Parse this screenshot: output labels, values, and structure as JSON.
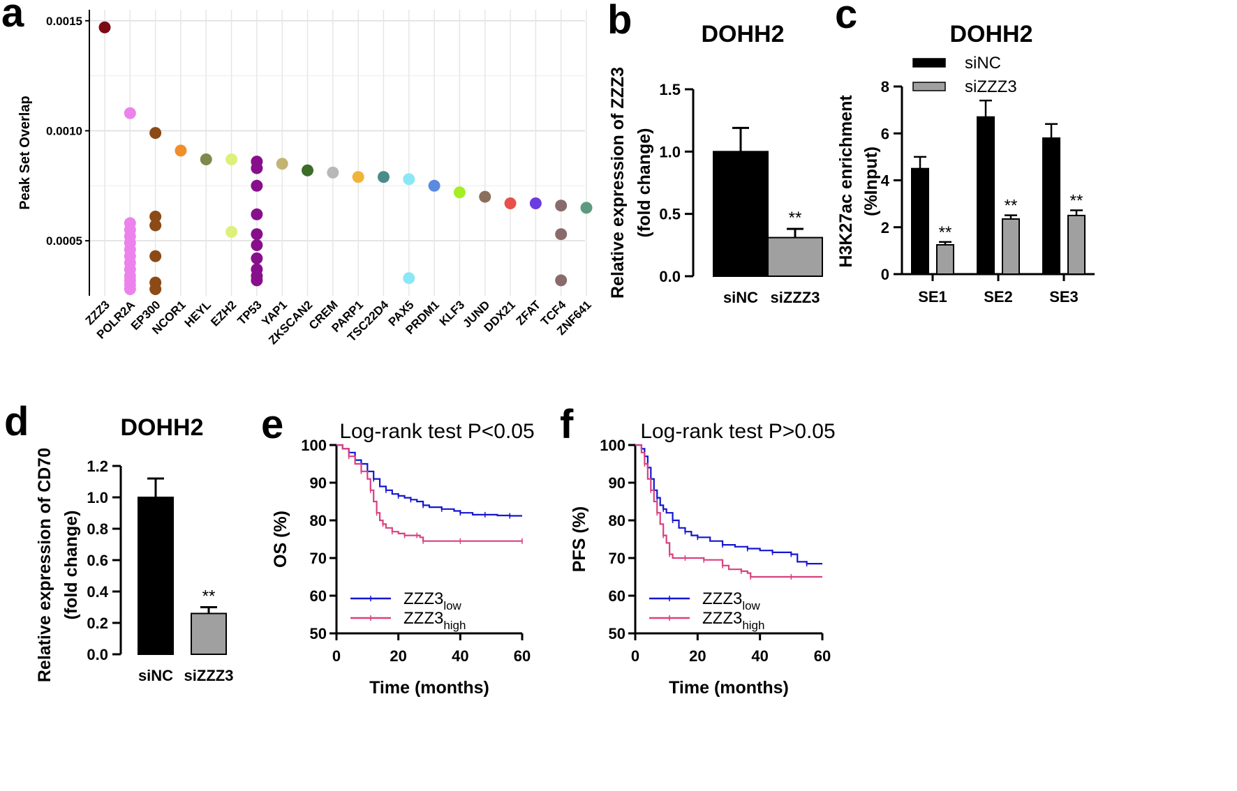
{
  "chart_data": [
    {
      "panel": "a",
      "type": "scatter",
      "ylabel": "Peak Set Overlap",
      "ylim": [
        0.00025,
        0.00155
      ],
      "yticks": [
        0.0005,
        0.001,
        0.0015
      ],
      "ytick_labels": [
        "0.0005",
        "0.0010",
        "0.0015"
      ],
      "categories": [
        "ZZZ3",
        "POLR2A",
        "EP300",
        "NCOR1",
        "HEYL",
        "EZH2",
        "TP53",
        "YAP1",
        "ZKSCAN2",
        "CREM",
        "PARP1",
        "TSC22D4",
        "PAX5",
        "PRDM1",
        "KLF3",
        "JUND",
        "DDX21",
        "ZFAT",
        "TCF4",
        "ZNF641"
      ],
      "colors": [
        "#7a0a14",
        "#ec82ec",
        "#8b4a16",
        "#ef8e2a",
        "#7c8a4c",
        "#dcf07a",
        "#870f8c",
        "#c4b474",
        "#3c6c28",
        "#b8b8b8",
        "#f1b43a",
        "#4a8c8a",
        "#8ae8f4",
        "#5b8ae0",
        "#a4ee22",
        "#8c6e5c",
        "#e8504a",
        "#6c3ce0",
        "#8a6a6a",
        "#5c9a80"
      ],
      "points": [
        [
          0.00147
        ],
        [
          0.00108,
          0.00058,
          0.00055,
          0.00052,
          0.00049,
          0.00046,
          0.00043,
          0.0004,
          0.00037,
          0.00034,
          0.00032,
          0.0003,
          0.00028
        ],
        [
          0.00099,
          0.00061,
          0.00057,
          0.00043,
          0.00031,
          0.00028
        ],
        [
          0.00091
        ],
        [
          0.00087
        ],
        [
          0.00087,
          0.00054
        ],
        [
          0.00086,
          0.00083,
          0.00075,
          0.00062,
          0.00053,
          0.00048,
          0.00042,
          0.00037,
          0.00034,
          0.00032
        ],
        [
          0.00085
        ],
        [
          0.00082
        ],
        [
          0.00081
        ],
        [
          0.00079
        ],
        [
          0.00079
        ],
        [
          0.00078,
          0.00033
        ],
        [
          0.00075
        ],
        [
          0.00072
        ],
        [
          0.0007
        ],
        [
          0.00067
        ],
        [
          0.00067
        ],
        [
          0.00066,
          0.00053,
          0.00032
        ],
        [
          0.00065
        ]
      ]
    },
    {
      "panel": "b",
      "type": "bar",
      "title": "DOHH2",
      "ylabel": "Relative expression of ZZZ3\n(fold change)",
      "ylim": [
        0,
        1.5
      ],
      "yticks": [
        "0.0",
        "0.5",
        "1.0",
        "1.5"
      ],
      "categories": [
        "siNC",
        "siZZZ3"
      ],
      "values": [
        1.0,
        0.31
      ],
      "errors": [
        0.19,
        0.07
      ],
      "bar_colors": [
        "#000000",
        "#a0a0a0"
      ],
      "significance": [
        "",
        "**"
      ]
    },
    {
      "panel": "c",
      "type": "bar",
      "title": "DOHH2",
      "ylabel": "H3K27ac enrichment\n(%Input)",
      "ylim": [
        0,
        8
      ],
      "yticks": [
        "0",
        "2",
        "4",
        "6",
        "8"
      ],
      "categories": [
        "SE1",
        "SE2",
        "SE3"
      ],
      "series": [
        {
          "name": "siNC",
          "values": [
            4.5,
            6.7,
            5.8
          ],
          "errors": [
            0.5,
            0.7,
            0.6
          ],
          "color": "#000000"
        },
        {
          "name": "siZZZ3",
          "values": [
            1.25,
            2.35,
            2.5
          ],
          "errors": [
            0.12,
            0.16,
            0.22
          ],
          "color": "#a0a0a0"
        }
      ],
      "significance": [
        "**",
        "**",
        "**"
      ],
      "legend": "top-left"
    },
    {
      "panel": "d",
      "type": "bar",
      "title": "DOHH2",
      "ylabel": "Relative expression of CD70\n(fold change)",
      "ylim": [
        0,
        1.2
      ],
      "yticks": [
        "0.0",
        "0.2",
        "0.4",
        "0.6",
        "0.8",
        "1.0",
        "1.2"
      ],
      "categories": [
        "siNC",
        "siZZZ3"
      ],
      "values": [
        1.0,
        0.26
      ],
      "errors": [
        0.12,
        0.04
      ],
      "bar_colors": [
        "#000000",
        "#a0a0a0"
      ],
      "significance": [
        "",
        "**"
      ]
    },
    {
      "panel": "e",
      "type": "line",
      "title": "Log-rank test P<0.05",
      "xlabel": "Time (months)",
      "ylabel": "OS (%)",
      "xlim": [
        0,
        60
      ],
      "ylim": [
        50,
        100
      ],
      "xticks": [
        "0",
        "20",
        "40",
        "60"
      ],
      "yticks": [
        "50",
        "60",
        "70",
        "80",
        "90",
        "100"
      ],
      "legend": "bottom-left",
      "series": [
        {
          "name": "ZZZ3",
          "sub": "low",
          "color": "#1515d0",
          "x": [
            0,
            2,
            4,
            6,
            8,
            10,
            12,
            14,
            16,
            18,
            20,
            22,
            24,
            26,
            28,
            30,
            34,
            38,
            40,
            44,
            48,
            52,
            56,
            60
          ],
          "y": [
            100,
            99,
            98,
            96,
            95,
            93,
            91,
            89,
            88,
            87,
            86.5,
            86,
            85.5,
            85,
            84,
            83.5,
            83,
            82.5,
            82,
            81.5,
            81.5,
            81.3,
            81.2,
            81.2
          ]
        },
        {
          "name": "ZZZ3",
          "sub": "high",
          "color": "#d94080",
          "x": [
            0,
            2,
            4,
            6,
            8,
            10,
            11,
            12,
            13,
            14,
            15,
            16,
            18,
            20,
            22,
            24,
            26,
            27,
            28,
            30,
            40,
            50,
            60
          ],
          "y": [
            100,
            99,
            97,
            95,
            93,
            91,
            88,
            85,
            82,
            80,
            79,
            78,
            77,
            76.5,
            76,
            76,
            76,
            75.5,
            74.5,
            74.5,
            74.5,
            74.5,
            74.5
          ]
        }
      ]
    },
    {
      "panel": "f",
      "type": "line",
      "title": "Log-rank test P>0.05",
      "xlabel": "Time (months)",
      "ylabel": "PFS (%)",
      "xlim": [
        0,
        60
      ],
      "ylim": [
        50,
        100
      ],
      "xticks": [
        "0",
        "20",
        "40",
        "60"
      ],
      "yticks": [
        "50",
        "60",
        "70",
        "80",
        "90",
        "100"
      ],
      "legend": "bottom-left",
      "series": [
        {
          "name": "ZZZ3",
          "sub": "low",
          "color": "#1515d0",
          "x": [
            0,
            2,
            3,
            4,
            5,
            6,
            7,
            8,
            9,
            10,
            12,
            14,
            16,
            18,
            20,
            24,
            28,
            32,
            36,
            40,
            44,
            48,
            50,
            52,
            55,
            60
          ],
          "y": [
            100,
            99,
            97,
            94,
            91,
            88,
            86,
            84,
            83,
            82,
            80,
            78,
            77,
            76,
            75.5,
            74.5,
            73.5,
            73,
            72.5,
            72,
            71.5,
            71.5,
            71,
            69,
            68.5,
            68.5
          ]
        },
        {
          "name": "ZZZ3",
          "sub": "high",
          "color": "#d94080",
          "x": [
            0,
            2,
            3,
            4,
            5,
            6,
            7,
            8,
            9,
            10,
            11,
            12,
            16,
            20,
            22,
            24,
            28,
            30,
            34,
            36,
            37,
            40,
            50,
            60
          ],
          "y": [
            100,
            98,
            95,
            91,
            88,
            85,
            82,
            79,
            76,
            74,
            71,
            70,
            70,
            70,
            69.5,
            69.5,
            68,
            67,
            66.5,
            66,
            65,
            65,
            65,
            65
          ]
        }
      ]
    }
  ],
  "panels": {
    "a": "a",
    "b": "b",
    "c": "c",
    "d": "d",
    "e": "e",
    "f": "f"
  }
}
